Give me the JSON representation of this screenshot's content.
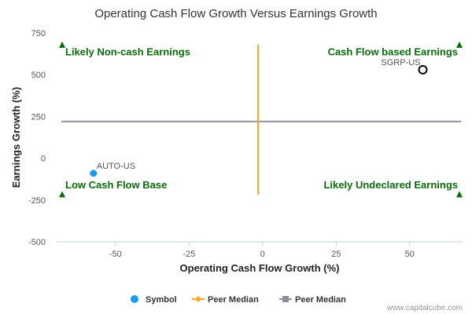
{
  "chart_data": {
    "type": "scatter",
    "title": "Operating Cash Flow Growth Versus Earnings Growth",
    "xlabel": "Operating Cash Flow Growth (%)",
    "ylabel": "Earnings Growth (%)",
    "xlim": [
      -70,
      68
    ],
    "ylim": [
      -500,
      750
    ],
    "xticks": [
      -50,
      -25,
      0,
      25,
      50
    ],
    "yticks": [
      -500,
      -250,
      0,
      250,
      500,
      750
    ],
    "xtick_labels": [
      "-50",
      "-25",
      "0",
      "25",
      "50"
    ],
    "ytick_labels": [
      "-500",
      "-250",
      "0",
      "250",
      "500",
      "750"
    ],
    "grid": false,
    "points": [
      {
        "label": "AUTO-US",
        "x": -57.5,
        "y": -90,
        "style": "filled",
        "color": "#1a9bf0"
      },
      {
        "label": "SGRP-US",
        "x": 54.5,
        "y": 530,
        "style": "hollow",
        "color": "#000000"
      }
    ],
    "peer_median_x": -1.5,
    "peer_median_y": 220,
    "peer_median_x_color": "#f5a623",
    "peer_median_y_color": "#8e8e9a",
    "quadrant_labels": [
      {
        "text": "Likely Non-cash Earnings",
        "position": "top-left"
      },
      {
        "text": "Cash Flow based Earnings",
        "position": "top-right"
      },
      {
        "text": "Low Cash Flow Base",
        "position": "bottom-left"
      },
      {
        "text": "Likely Undeclared Earnings",
        "position": "bottom-right"
      }
    ],
    "quadrant_color": "#0a6b0a",
    "legend": [
      {
        "name": "Symbol",
        "marker": "circle",
        "color": "#1a9bf0"
      },
      {
        "name": "Peer Median",
        "marker": "diamond-line",
        "color": "#f5a623"
      },
      {
        "name": "Peer Median",
        "marker": "square-line",
        "color": "#8e8e9a"
      }
    ],
    "legend_position": "bottom-center"
  },
  "credit": "www.capitalcube.com"
}
